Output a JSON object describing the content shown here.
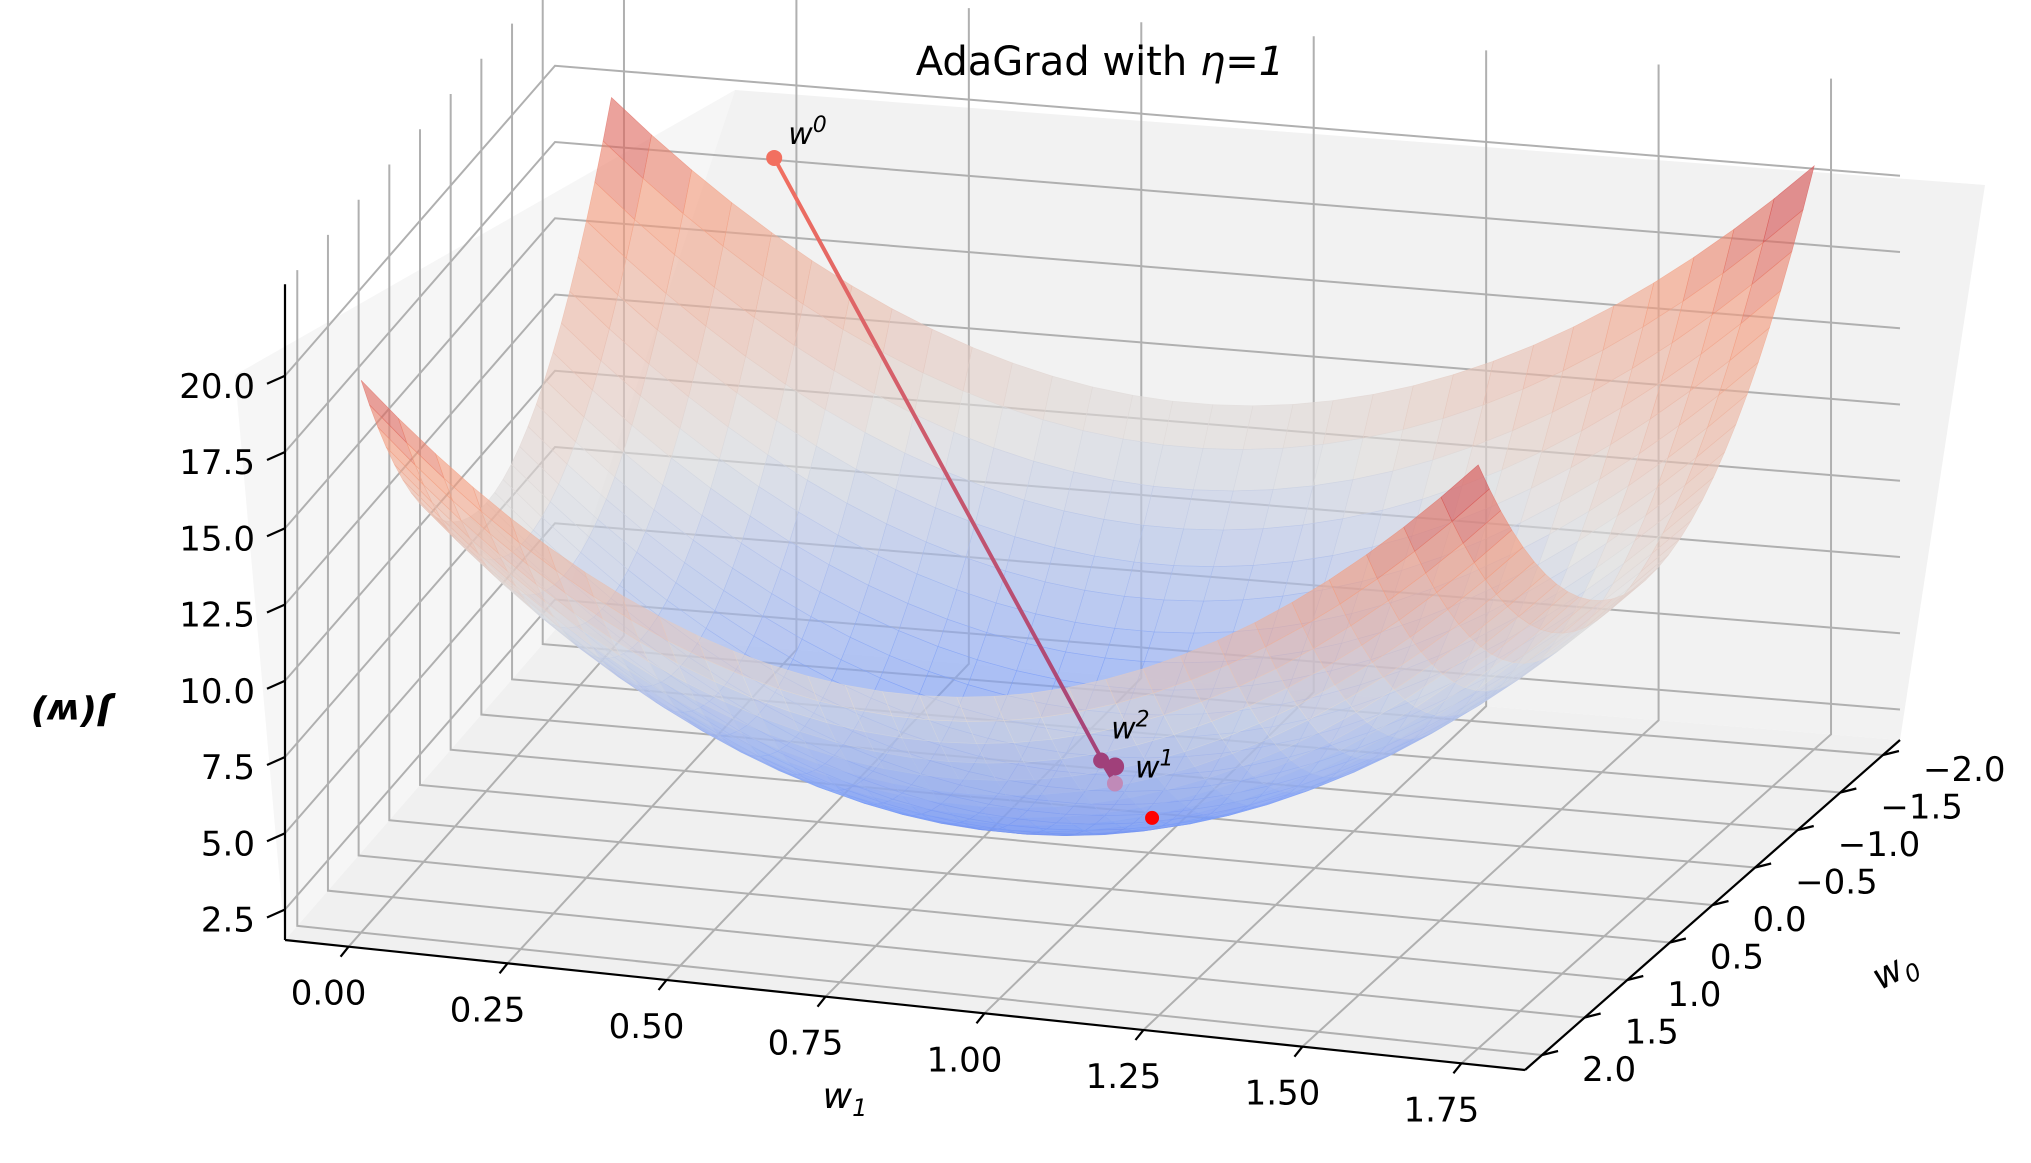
{
  "chart_data": {
    "type": "surface3d",
    "title_prefix": "AdaGrad with ",
    "title_math": "η=1",
    "xlabel": "w",
    "xlabel_sub": "1",
    "ylabel": "w",
    "ylabel_sub": "0",
    "zlabel": "J(w)",
    "w1_ticks": [
      "0.00",
      "0.25",
      "0.50",
      "0.75",
      "1.00",
      "1.25",
      "1.50",
      "1.75"
    ],
    "w0_ticks": [
      "−2.0",
      "−1.5",
      "−1.0",
      "−0.5",
      "0.0",
      "0.5",
      "1.0",
      "1.5",
      "2.0"
    ],
    "z_ticks": [
      "2.5",
      "5.0",
      "7.5",
      "10.0",
      "12.5",
      "15.0",
      "17.5",
      "20.0"
    ],
    "w1_range": [
      -0.1,
      1.85
    ],
    "w0_range": [
      -2.2,
      2.2
    ],
    "z_range": [
      1.5,
      23.0
    ],
    "surface": {
      "colormap": "coolwarm",
      "w1_range": [
        0,
        1.75
      ],
      "w0_range": [
        -2,
        2
      ],
      "z_min": 2.5,
      "z_max": 22.6,
      "alpha": 0.6
    },
    "trajectory": {
      "color_start": "#f27060",
      "color_end": "#a0407a",
      "points": [
        {
          "label": "w",
          "sup": "0",
          "z": 19.2
        },
        {
          "label": "w",
          "sup": "1",
          "z": 4.4
        },
        {
          "label": "w",
          "sup": "2",
          "z": 4.9
        }
      ],
      "minimum_marker": {
        "color": "#ff0000"
      }
    },
    "grid": true,
    "pane_color": "#f2f2f2"
  }
}
